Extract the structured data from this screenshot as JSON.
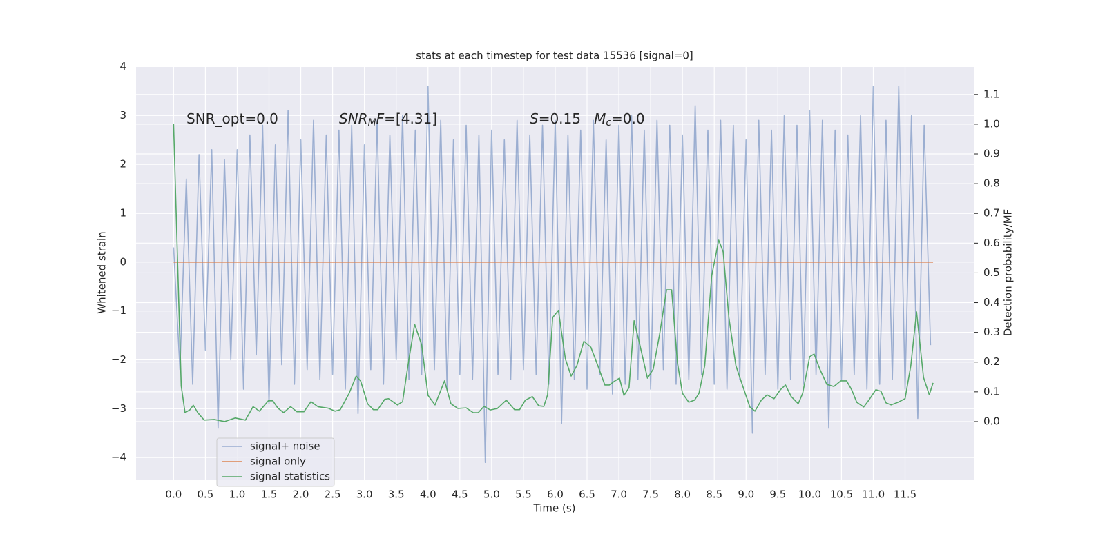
{
  "chart_data": {
    "type": "line",
    "title": "stats at each timestep for test data 15536 [signal=0]",
    "xlabel": "Time (s)",
    "ylabel": "Whitened strain",
    "y2label": "Detection probability/MF",
    "xlim": [
      -0.59,
      12.58
    ],
    "ylim": [
      -4.45,
      4.02
    ],
    "y2lim": [
      -0.195,
      1.197
    ],
    "xticks": [
      {
        "value": 0,
        "label": "0.0"
      },
      0.5,
      {
        "value": 1,
        "label": "1.0"
      },
      1.5,
      {
        "value": 2,
        "label": "2.0"
      },
      2.5,
      {
        "value": 3,
        "label": "3.0"
      },
      3.5,
      {
        "value": 4,
        "label": "4.0"
      },
      4.5,
      {
        "value": 5,
        "label": "5.0"
      },
      5.5,
      {
        "value": 6,
        "label": "6.0"
      },
      6.5,
      {
        "value": 7,
        "label": "7.0"
      },
      7.5,
      {
        "value": 8,
        "label": "8.0"
      },
      8.5,
      {
        "value": 9,
        "label": "9.0"
      },
      9.5,
      {
        "value": 10,
        "label": "10.0"
      },
      10.5,
      {
        "value": 11,
        "label": "11.0"
      },
      11.5
    ],
    "yticks": [
      {
        "value": -4,
        "label": "−4"
      },
      {
        "value": -3,
        "label": "−3"
      },
      {
        "value": -2,
        "label": "−2"
      },
      {
        "value": -1,
        "label": "−1"
      },
      0,
      1,
      2,
      3,
      4
    ],
    "y2ticks": [
      {
        "value": 0,
        "label": "0.0"
      },
      0.1,
      0.2,
      0.3,
      0.4,
      0.5,
      0.6,
      0.7,
      0.8,
      0.9,
      {
        "value": 1,
        "label": "1.0"
      },
      1.1
    ],
    "grid": true,
    "legend": "lower left",
    "annotations": [
      [
        {
          "text": "SNR_opt=0.0",
          "style": "normal"
        }
      ],
      [
        {
          "text": "SNR",
          "style": "italic"
        },
        {
          "text": "M",
          "style": "italic-sub"
        },
        {
          "text": "F",
          "style": "italic"
        },
        {
          "text": "=[4.31]",
          "style": "normal"
        }
      ],
      [
        {
          "text": "S",
          "style": "italic"
        },
        {
          "text": "=0.15   ",
          "style": "normal"
        },
        {
          "text": "M",
          "style": "italic"
        },
        {
          "text": "c",
          "style": "italic-sub"
        },
        {
          "text": "=0.0",
          "style": "normal"
        }
      ]
    ],
    "series": [
      {
        "name": "signal+ noise",
        "color": "#4c72b0",
        "alpha": 0.5,
        "x": [
          0,
          0.1,
          0.2,
          0.3,
          0.4,
          0.5,
          0.6,
          0.7,
          0.8,
          0.9,
          1,
          1.1,
          1.2,
          1.3,
          1.4,
          1.5,
          1.6,
          1.7,
          1.8,
          1.9,
          2,
          2.1,
          2.2,
          2.3,
          2.4,
          2.5,
          2.6,
          2.7,
          2.8,
          2.9,
          3,
          3.1,
          3.2,
          3.3,
          3.4,
          3.5,
          3.6,
          3.7,
          3.8,
          3.9,
          4,
          4.1,
          4.2,
          4.3,
          4.4,
          4.5,
          4.6,
          4.7,
          4.8,
          4.9,
          5,
          5.1,
          5.2,
          5.3,
          5.4,
          5.5,
          5.6,
          5.7,
          5.8,
          5.9,
          6,
          6.1,
          6.2,
          6.3,
          6.4,
          6.5,
          6.6,
          6.7,
          6.8,
          6.9,
          7,
          7.1,
          7.2,
          7.3,
          7.4,
          7.5,
          7.6,
          7.7,
          7.8,
          7.9,
          8,
          8.1,
          8.2,
          8.3,
          8.4,
          8.5,
          8.6,
          8.7,
          8.8,
          8.9,
          9,
          9.1,
          9.2,
          9.3,
          9.4,
          9.5,
          9.6,
          9.7,
          9.8,
          9.9,
          10,
          10.1,
          10.2,
          10.3,
          10.4,
          10.5,
          10.6,
          10.7,
          10.8,
          10.9,
          11,
          11.1,
          11.2,
          11.3,
          11.4,
          11.5,
          11.6,
          11.7,
          11.8,
          11.9
        ],
        "values": [
          0.3,
          -2.2,
          1.7,
          -2.5,
          2.2,
          -1.8,
          2.3,
          -3.4,
          2.1,
          -2.0,
          2.3,
          -2.6,
          2.6,
          -1.9,
          2.8,
          -2.9,
          2.4,
          -2.1,
          3.1,
          -2.5,
          2.5,
          -2.2,
          2.9,
          -2.4,
          2.6,
          -2.3,
          2.7,
          -2.6,
          2.8,
          -3.1,
          2.4,
          -2.2,
          2.9,
          -2.5,
          2.6,
          -2.0,
          3.0,
          -2.4,
          2.7,
          -2.3,
          3.6,
          -2.2,
          2.9,
          -2.6,
          2.5,
          -2.3,
          2.8,
          -2.4,
          2.6,
          -4.1,
          2.7,
          -2.3,
          2.5,
          -2.4,
          2.9,
          -2.2,
          2.6,
          -2.3,
          2.8,
          -2.5,
          2.9,
          -3.3,
          2.6,
          -2.4,
          2.7,
          -2.6,
          2.9,
          -2.3,
          2.5,
          -2.7,
          2.8,
          -2.5,
          3.0,
          -2.4,
          2.7,
          -2.6,
          2.9,
          -2.2,
          2.8,
          -2.5,
          2.6,
          -2.4,
          3.2,
          -2.3,
          2.7,
          -2.5,
          2.9,
          -2.6,
          2.8,
          -2.4,
          2.5,
          -3.5,
          2.9,
          -2.3,
          2.7,
          -2.6,
          3.0,
          -2.4,
          2.8,
          -2.5,
          3.1,
          -2.3,
          2.9,
          -3.4,
          2.7,
          -2.4,
          2.6,
          -2.3,
          3.0,
          -2.6,
          3.6,
          -2.5,
          2.9,
          -2.4,
          3.6,
          -2.6,
          3.0,
          -3.2,
          2.8,
          -1.7
        ]
      },
      {
        "name": "signal only",
        "color": "#dd8452",
        "alpha": 1,
        "x": [
          0,
          11.94
        ],
        "values": [
          0,
          0
        ]
      },
      {
        "name": "signal statistics",
        "color": "#55a868",
        "alpha": 1,
        "axis": "y2",
        "x": [
          0,
          0.12,
          0.18,
          0.26,
          0.31,
          0.38,
          0.48,
          0.64,
          0.8,
          0.97,
          1.13,
          1.25,
          1.35,
          1.49,
          1.56,
          1.64,
          1.73,
          1.84,
          1.94,
          2.05,
          2.16,
          2.27,
          2.43,
          2.54,
          2.62,
          2.76,
          2.87,
          2.94,
          3.05,
          3.14,
          3.21,
          3.32,
          3.38,
          3.52,
          3.6,
          3.7,
          3.79,
          3.9,
          4.0,
          4.11,
          4.26,
          4.36,
          4.47,
          4.6,
          4.71,
          4.79,
          4.88,
          4.98,
          5.09,
          5.23,
          5.36,
          5.44,
          5.53,
          5.64,
          5.74,
          5.82,
          5.88,
          5.96,
          6.05,
          6.16,
          6.25,
          6.34,
          6.45,
          6.56,
          6.67,
          6.78,
          6.85,
          6.94,
          7.01,
          7.08,
          7.16,
          7.24,
          7.33,
          7.45,
          7.54,
          7.64,
          7.75,
          7.83,
          7.92,
          8.0,
          8.1,
          8.19,
          8.26,
          8.35,
          8.46,
          8.57,
          8.64,
          8.73,
          8.84,
          8.95,
          9.06,
          9.14,
          9.24,
          9.33,
          9.44,
          9.54,
          9.62,
          9.71,
          9.82,
          9.89,
          10.0,
          10.07,
          10.16,
          10.27,
          10.38,
          10.49,
          10.58,
          10.66,
          10.74,
          10.85,
          10.93,
          11.04,
          11.12,
          11.2,
          11.28,
          11.39,
          11.5,
          11.59,
          11.68,
          11.79,
          11.88,
          11.94
        ],
        "values": [
          1.0,
          0.12,
          0.03,
          0.04,
          0.055,
          0.03,
          0.005,
          0.007,
          0.0,
          0.012,
          0.005,
          0.05,
          0.035,
          0.07,
          0.07,
          0.045,
          0.03,
          0.05,
          0.033,
          0.033,
          0.067,
          0.05,
          0.045,
          0.035,
          0.04,
          0.095,
          0.153,
          0.137,
          0.06,
          0.04,
          0.04,
          0.075,
          0.077,
          0.056,
          0.067,
          0.21,
          0.327,
          0.258,
          0.088,
          0.056,
          0.137,
          0.06,
          0.044,
          0.046,
          0.03,
          0.03,
          0.051,
          0.039,
          0.044,
          0.072,
          0.04,
          0.04,
          0.072,
          0.084,
          0.053,
          0.051,
          0.09,
          0.35,
          0.374,
          0.21,
          0.153,
          0.188,
          0.27,
          0.25,
          0.188,
          0.123,
          0.123,
          0.137,
          0.146,
          0.088,
          0.114,
          0.339,
          0.258,
          0.146,
          0.176,
          0.292,
          0.443,
          0.443,
          0.2,
          0.095,
          0.065,
          0.072,
          0.095,
          0.188,
          0.49,
          0.61,
          0.571,
          0.35,
          0.188,
          0.118,
          0.049,
          0.035,
          0.072,
          0.09,
          0.077,
          0.107,
          0.123,
          0.084,
          0.06,
          0.095,
          0.218,
          0.227,
          0.176,
          0.125,
          0.118,
          0.137,
          0.137,
          0.107,
          0.065,
          0.049,
          0.072,
          0.107,
          0.102,
          0.063,
          0.056,
          0.065,
          0.077,
          0.188,
          0.369,
          0.148,
          0.09,
          0.13
        ]
      }
    ]
  }
}
